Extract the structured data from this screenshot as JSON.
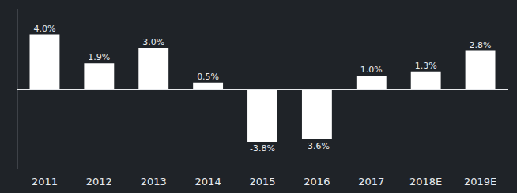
{
  "chart_data": {
    "type": "bar",
    "categories": [
      "2011",
      "2012",
      "2013",
      "2014",
      "2015",
      "2016",
      "2017",
      "2018E",
      "2019E"
    ],
    "values": [
      4.0,
      1.9,
      3.0,
      0.5,
      -3.8,
      -3.6,
      1.0,
      1.3,
      2.8
    ],
    "value_labels": [
      "4.0%",
      "1.9%",
      "3.0%",
      "0.5%",
      "-3.8%",
      "-3.6%",
      "1.0%",
      "1.3%",
      "2.8%"
    ],
    "color": "#ffffff",
    "ylim": [
      -5.8,
      5.8
    ],
    "data_labels": true,
    "tick_labels": "x",
    "grid": false
  }
}
